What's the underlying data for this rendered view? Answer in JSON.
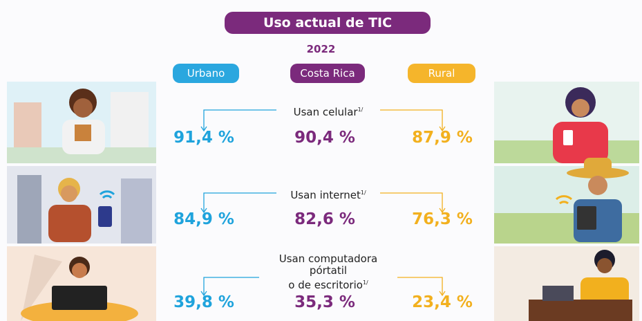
{
  "header": {
    "title": "Uso actual de TIC",
    "year": "2022"
  },
  "columns": [
    "Urbano",
    "Costa Rica",
    "Rural"
  ],
  "rows": [
    {
      "label": [
        "Usan celular"
      ],
      "sup": "1/",
      "values": [
        "91,4 %",
        "90,4 %",
        "87,9 %"
      ]
    },
    {
      "label": [
        "Usan internet"
      ],
      "sup": "1/",
      "values": [
        "84,9 %",
        "82,6 %",
        "76,3 %"
      ]
    },
    {
      "label": [
        "Usan computadora",
        "pórtatil",
        "o de escritorio"
      ],
      "sup": "1/",
      "values": [
        "39,8 %",
        "35,3 %",
        "23,4 %"
      ]
    }
  ]
}
